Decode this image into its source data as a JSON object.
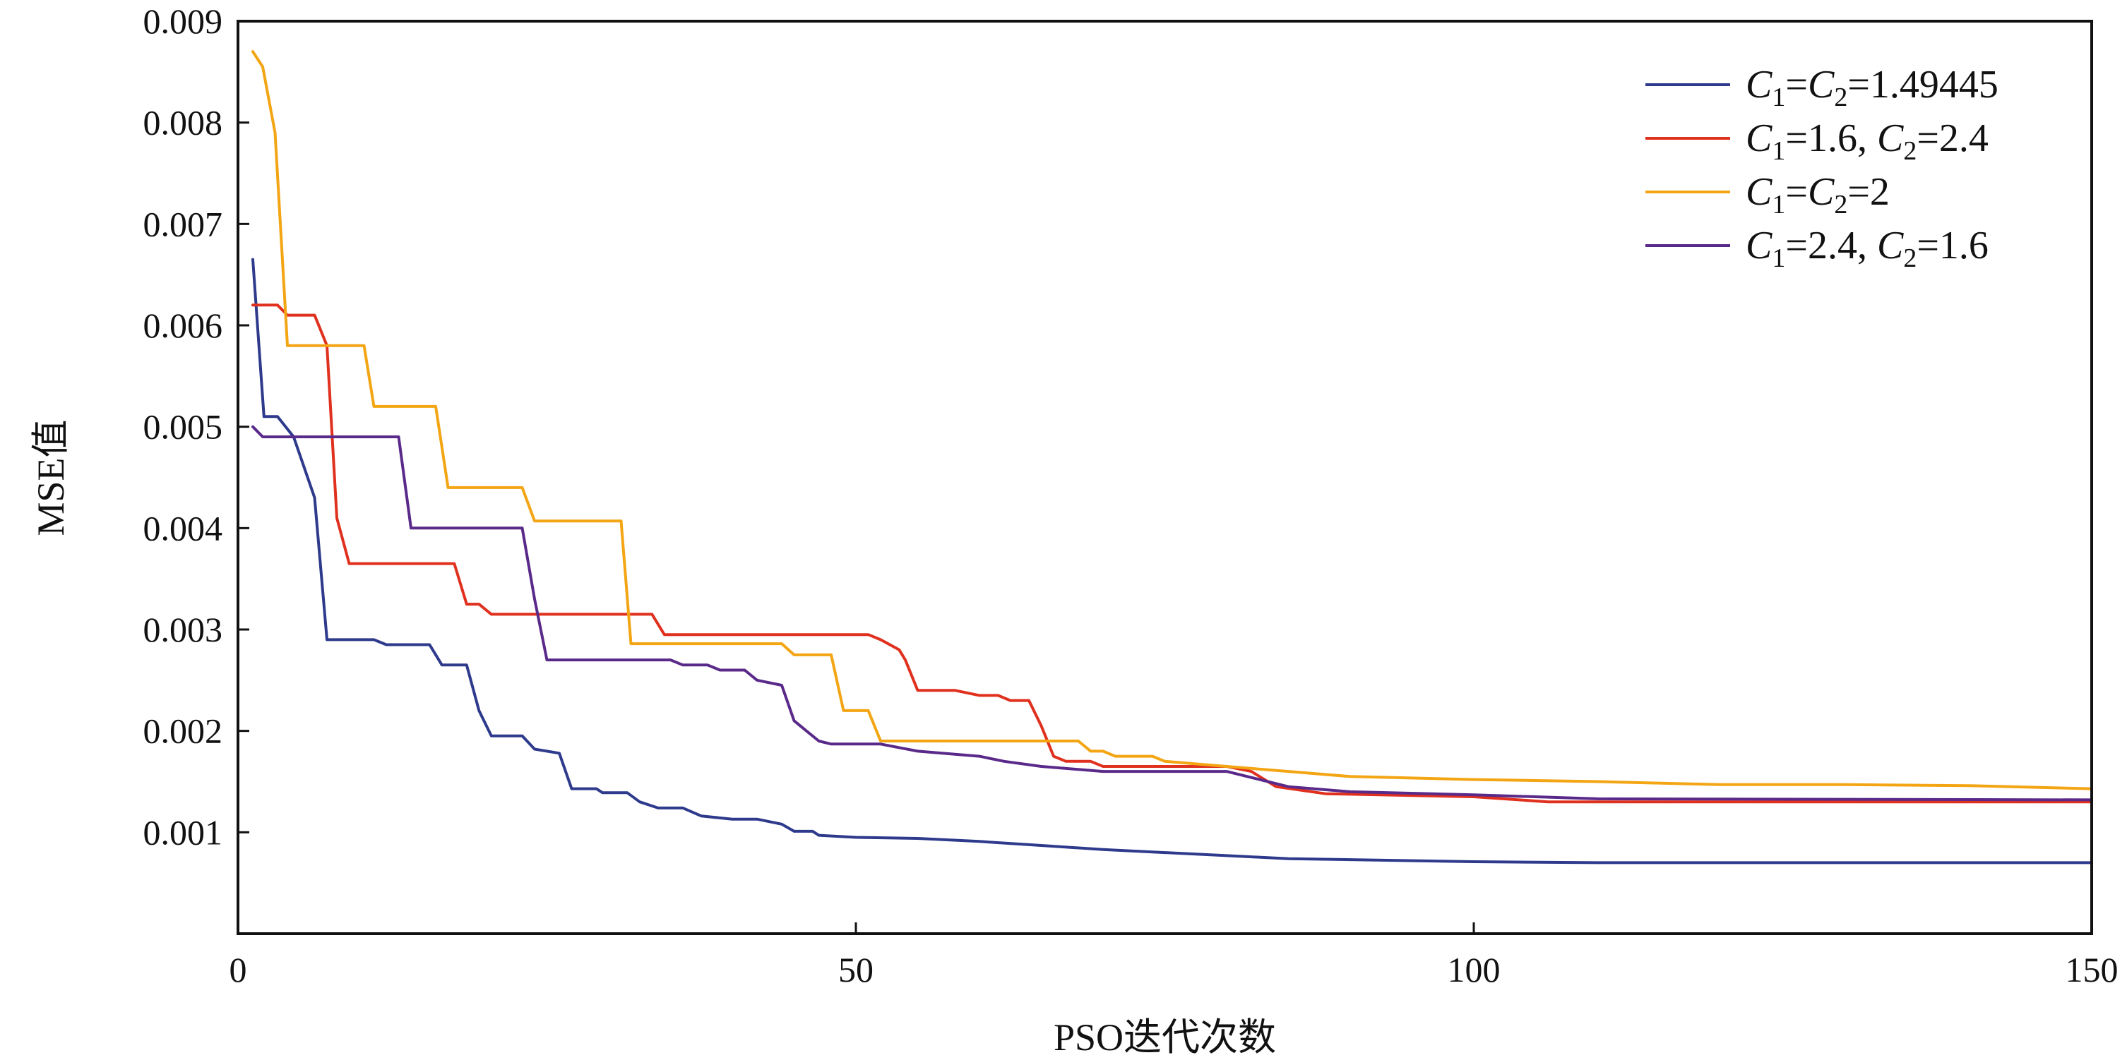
{
  "chart_data": {
    "type": "line",
    "xlabel": "PSO迭代次数",
    "ylabel": "MSE值",
    "xlim": [
      0,
      150
    ],
    "ylim": [
      0,
      0.009
    ],
    "xticks": [
      0,
      50,
      100,
      150
    ],
    "xtick_labels": [
      "0",
      "50",
      "100",
      "150"
    ],
    "yticks": [
      0.001,
      0.002,
      0.003,
      0.004,
      0.005,
      0.006,
      0.007,
      0.008,
      0.009
    ],
    "ytick_labels": [
      "0.001",
      "0.002",
      "0.003",
      "0.004",
      "0.005",
      "0.006",
      "0.007",
      "0.008",
      "0.009"
    ],
    "grid": false,
    "legend_position": "top-right",
    "series": [
      {
        "name": "C1=C2=1.49445",
        "label_parts": [
          [
            "C",
            "i"
          ],
          [
            "1",
            "sub"
          ],
          [
            "=",
            "n"
          ],
          [
            "C",
            "i"
          ],
          [
            "2",
            "sub"
          ],
          [
            "=1.49445",
            "n"
          ]
        ],
        "color": "#2e3a8c",
        "points": [
          [
            1.2,
            0.00665
          ],
          [
            2.1,
            0.0051
          ],
          [
            3.2,
            0.0051
          ],
          [
            4.5,
            0.0049
          ],
          [
            6.2,
            0.0043
          ],
          [
            7.2,
            0.0029
          ],
          [
            11,
            0.0029
          ],
          [
            12,
            0.00285
          ],
          [
            15.5,
            0.00285
          ],
          [
            16.5,
            0.00265
          ],
          [
            18.5,
            0.00265
          ],
          [
            19.5,
            0.0022
          ],
          [
            20.5,
            0.00195
          ],
          [
            23,
            0.00195
          ],
          [
            24,
            0.00182
          ],
          [
            26,
            0.00178
          ],
          [
            27,
            0.00143
          ],
          [
            29,
            0.00143
          ],
          [
            29.5,
            0.00139
          ],
          [
            31.5,
            0.00139
          ],
          [
            32.5,
            0.0013
          ],
          [
            34,
            0.00124
          ],
          [
            36,
            0.00124
          ],
          [
            37.5,
            0.00116
          ],
          [
            40,
            0.00113
          ],
          [
            42,
            0.00113
          ],
          [
            44,
            0.00108
          ],
          [
            45,
            0.00101
          ],
          [
            46.5,
            0.00101
          ],
          [
            47,
            0.00097
          ],
          [
            50,
            0.00095
          ],
          [
            55,
            0.00094
          ],
          [
            60,
            0.00091
          ],
          [
            65,
            0.00087
          ],
          [
            70,
            0.00083
          ],
          [
            75,
            0.0008
          ],
          [
            80,
            0.00077
          ],
          [
            85,
            0.00074
          ],
          [
            90,
            0.00073
          ],
          [
            100,
            0.00071
          ],
          [
            110,
            0.0007
          ],
          [
            120,
            0.0007
          ],
          [
            150,
            0.0007
          ]
        ]
      },
      {
        "name": "C1=1.6, C2=2.4",
        "label_parts": [
          [
            "C",
            "i"
          ],
          [
            "1",
            "sub"
          ],
          [
            "=1.6, ",
            "n"
          ],
          [
            "C",
            "i"
          ],
          [
            "2",
            "sub"
          ],
          [
            "=2.4",
            "n"
          ]
        ],
        "color": "#e0301e",
        "points": [
          [
            1.2,
            0.0062
          ],
          [
            3.2,
            0.0062
          ],
          [
            4,
            0.0061
          ],
          [
            6.2,
            0.0061
          ],
          [
            7.2,
            0.0058
          ],
          [
            8,
            0.0041
          ],
          [
            9,
            0.00365
          ],
          [
            17.5,
            0.00365
          ],
          [
            18.5,
            0.00325
          ],
          [
            19.5,
            0.00325
          ],
          [
            20.5,
            0.00315
          ],
          [
            33.5,
            0.00315
          ],
          [
            34.5,
            0.00295
          ],
          [
            51,
            0.00295
          ],
          [
            52,
            0.0029
          ],
          [
            53.5,
            0.0028
          ],
          [
            54,
            0.0027
          ],
          [
            55,
            0.0024
          ],
          [
            58,
            0.0024
          ],
          [
            60,
            0.00235
          ],
          [
            61.5,
            0.00235
          ],
          [
            62.5,
            0.0023
          ],
          [
            64,
            0.0023
          ],
          [
            65,
            0.00205
          ],
          [
            66,
            0.00175
          ],
          [
            67,
            0.0017
          ],
          [
            69,
            0.0017
          ],
          [
            70,
            0.00165
          ],
          [
            80,
            0.00165
          ],
          [
            82,
            0.0016
          ],
          [
            84,
            0.00145
          ],
          [
            88,
            0.00138
          ],
          [
            100,
            0.00135
          ],
          [
            106,
            0.0013
          ],
          [
            150,
            0.0013
          ]
        ]
      },
      {
        "name": "C1=C2=2",
        "label_parts": [
          [
            "C",
            "i"
          ],
          [
            "1",
            "sub"
          ],
          [
            "=",
            "n"
          ],
          [
            "C",
            "i"
          ],
          [
            "2",
            "sub"
          ],
          [
            "=2",
            "n"
          ]
        ],
        "color": "#f3a514",
        "points": [
          [
            1.2,
            0.0087
          ],
          [
            2,
            0.00855
          ],
          [
            3,
            0.0079
          ],
          [
            4,
            0.0058
          ],
          [
            10.2,
            0.0058
          ],
          [
            11,
            0.0052
          ],
          [
            16,
            0.0052
          ],
          [
            17,
            0.0044
          ],
          [
            23,
            0.0044
          ],
          [
            24,
            0.00407
          ],
          [
            31,
            0.00407
          ],
          [
            31.8,
            0.00286
          ],
          [
            44,
            0.00286
          ],
          [
            45,
            0.00275
          ],
          [
            48,
            0.00275
          ],
          [
            49,
            0.0022
          ],
          [
            51,
            0.0022
          ],
          [
            52,
            0.0019
          ],
          [
            68,
            0.0019
          ],
          [
            69,
            0.0018
          ],
          [
            70,
            0.0018
          ],
          [
            71,
            0.00175
          ],
          [
            74,
            0.00175
          ],
          [
            75,
            0.0017
          ],
          [
            80,
            0.00165
          ],
          [
            85,
            0.0016
          ],
          [
            90,
            0.00155
          ],
          [
            100,
            0.00152
          ],
          [
            110,
            0.0015
          ],
          [
            120,
            0.00147
          ],
          [
            130,
            0.00147
          ],
          [
            140,
            0.00146
          ],
          [
            150,
            0.00143
          ]
        ]
      },
      {
        "name": "C1=2.4, C2=1.6",
        "label_parts": [
          [
            "C",
            "i"
          ],
          [
            "1",
            "sub"
          ],
          [
            "=2.4, ",
            "n"
          ],
          [
            "C",
            "i"
          ],
          [
            "2",
            "sub"
          ],
          [
            "=1.6",
            "n"
          ]
        ],
        "color": "#5a2a8a",
        "points": [
          [
            1.2,
            0.005
          ],
          [
            2,
            0.0049
          ],
          [
            13,
            0.0049
          ],
          [
            14,
            0.004
          ],
          [
            23,
            0.004
          ],
          [
            24,
            0.0033
          ],
          [
            25,
            0.0027
          ],
          [
            35,
            0.0027
          ],
          [
            36,
            0.00265
          ],
          [
            38,
            0.00265
          ],
          [
            39,
            0.0026
          ],
          [
            41,
            0.0026
          ],
          [
            42,
            0.0025
          ],
          [
            44,
            0.00245
          ],
          [
            45,
            0.0021
          ],
          [
            46,
            0.002
          ],
          [
            47,
            0.0019
          ],
          [
            48,
            0.00187
          ],
          [
            52,
            0.00187
          ],
          [
            55,
            0.0018
          ],
          [
            60,
            0.00175
          ],
          [
            62,
            0.0017
          ],
          [
            65,
            0.00165
          ],
          [
            70,
            0.0016
          ],
          [
            80,
            0.0016
          ],
          [
            85,
            0.00145
          ],
          [
            90,
            0.0014
          ],
          [
            100,
            0.00137
          ],
          [
            110,
            0.00133
          ],
          [
            150,
            0.00132
          ]
        ]
      }
    ]
  }
}
